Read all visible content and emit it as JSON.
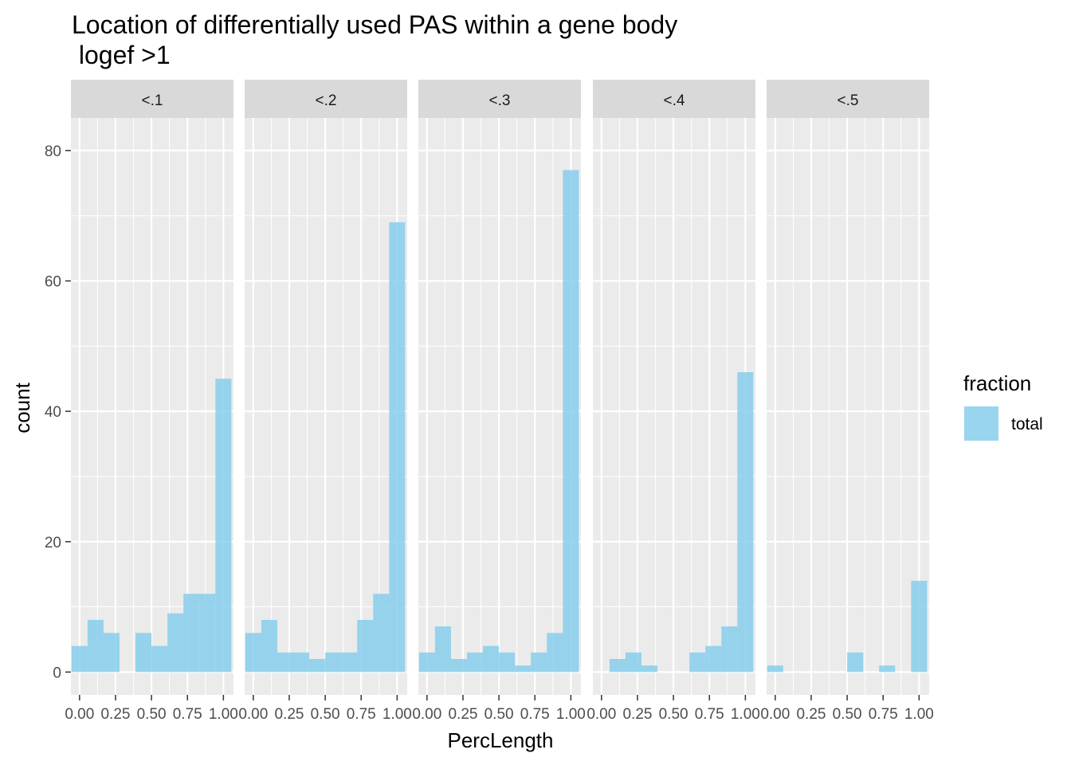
{
  "chart_data": {
    "type": "bar",
    "title_line1": "Location of differentially used PAS within a gene body",
    "title_line2": " logef >1",
    "xlabel": "PercLength",
    "ylabel": "count",
    "ylim": [
      -3.5,
      85
    ],
    "xlim": [
      -0.06,
      1.07
    ],
    "binwidth": 0.1111,
    "x_breaks": [
      0.0,
      0.25,
      0.5,
      0.75,
      1.0
    ],
    "x_tick_labels": [
      "0.00",
      "0.25",
      "0.50",
      "0.75",
      "1.00"
    ],
    "y_breaks": [
      0,
      20,
      40,
      60,
      80
    ],
    "y_tick_labels": [
      "0",
      "20",
      "40",
      "60",
      "80"
    ],
    "bin_centers": [
      0.0,
      0.1111,
      0.2222,
      0.3333,
      0.4444,
      0.5556,
      0.6667,
      0.7778,
      0.8889,
      1.0
    ],
    "fill_color": "#87ceeb",
    "fill_opacity": 0.85,
    "legend": {
      "title": "fraction",
      "entries": [
        "total"
      ]
    },
    "facets": [
      {
        "label": "<.1",
        "values": [
          4,
          8,
          6,
          0,
          6,
          4,
          9,
          12,
          12,
          45
        ]
      },
      {
        "label": "<.2",
        "values": [
          6,
          8,
          3,
          3,
          2,
          3,
          3,
          8,
          12,
          69
        ]
      },
      {
        "label": "<.3",
        "values": [
          3,
          7,
          2,
          3,
          4,
          3,
          1,
          3,
          6,
          77
        ]
      },
      {
        "label": "<.4",
        "values": [
          0,
          2,
          3,
          1,
          0,
          0,
          3,
          4,
          7,
          46
        ]
      },
      {
        "label": "<.5",
        "values": [
          1,
          0,
          0,
          0,
          0,
          3,
          0,
          1,
          0,
          14
        ]
      }
    ]
  },
  "colors": {
    "panel_bg": "#ebebeb",
    "strip_bg": "#d9d9d9",
    "grid_major": "#ffffff",
    "tick_color": "#333333"
  }
}
